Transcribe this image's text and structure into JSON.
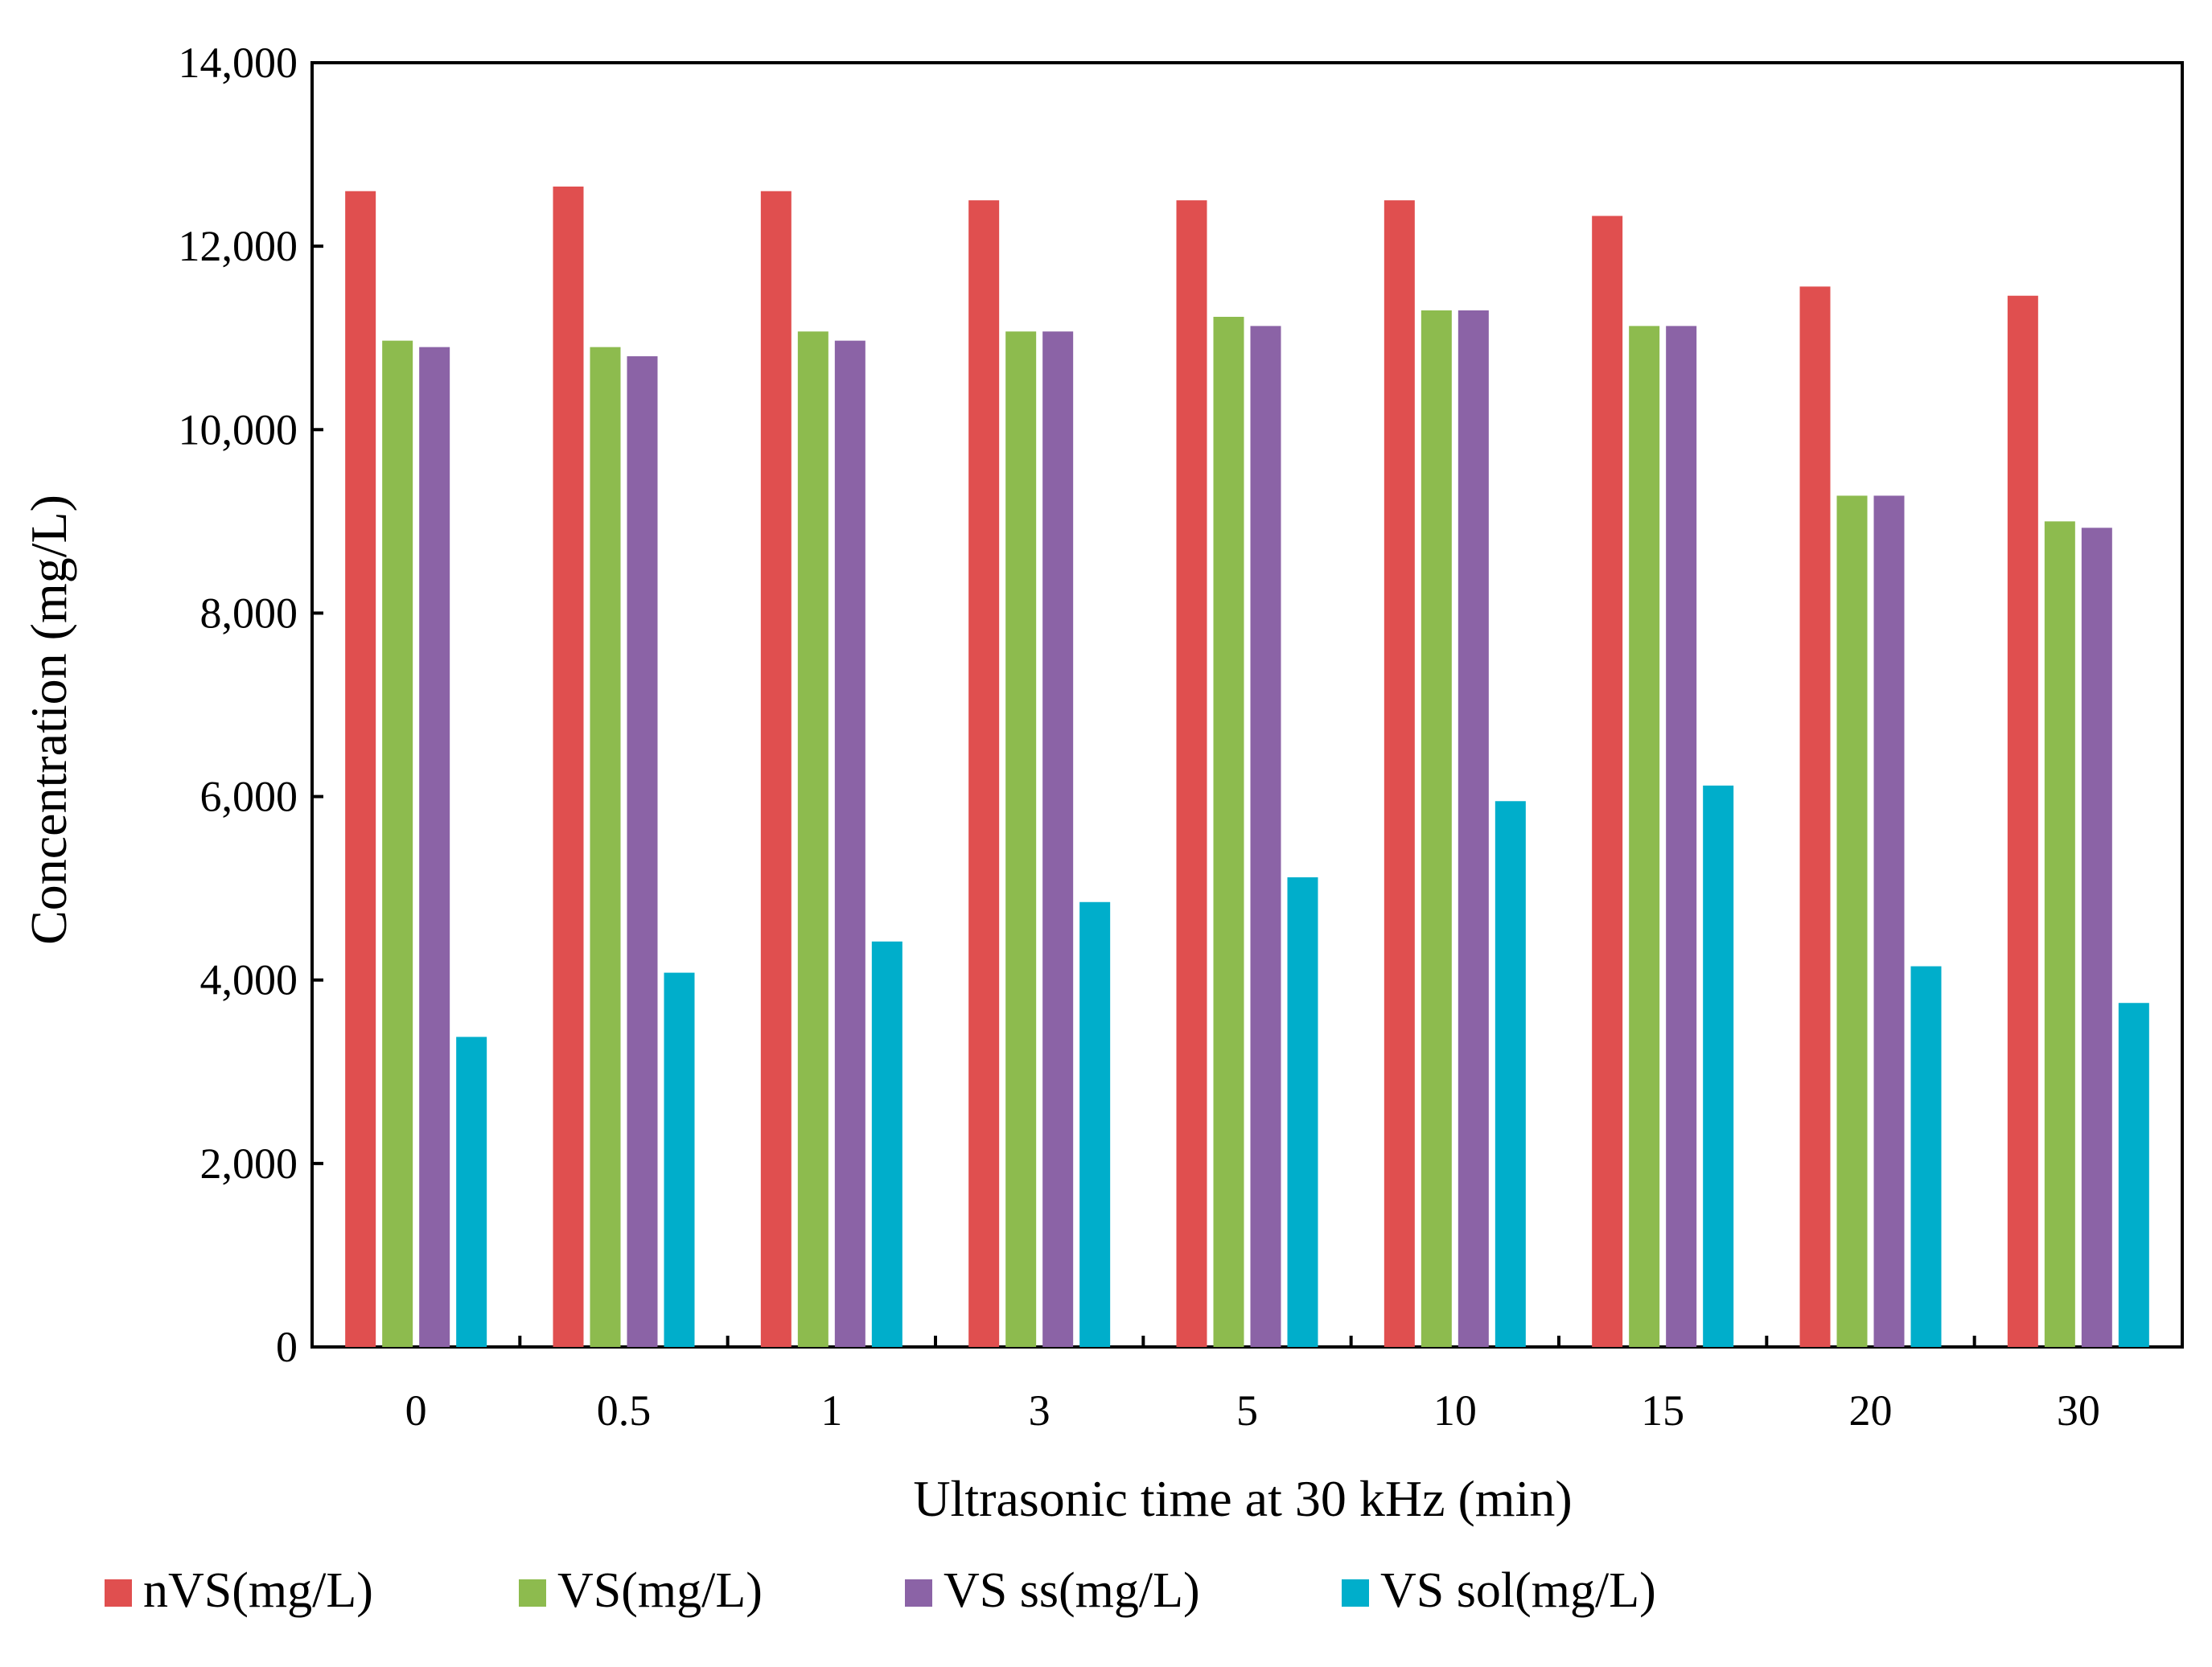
{
  "chart_data": {
    "type": "bar",
    "title": "",
    "xlabel": "Ultrasonic time at 30 kHz (min)",
    "ylabel": "Concentration (mg/L)",
    "ylim": [
      0,
      14000
    ],
    "ytick_values": [
      0,
      2000,
      4000,
      6000,
      8000,
      10000,
      12000,
      14000
    ],
    "ytick_labels": [
      "0",
      "2,000",
      "4,000",
      "6,000",
      "8,000",
      "10,000",
      "12,000",
      "14,000"
    ],
    "categories": [
      "0",
      "0.5",
      "1",
      "3",
      "5",
      "10",
      "15",
      "20",
      "30"
    ],
    "grid": false,
    "legend_position": "bottom",
    "series": [
      {
        "name": "nVS(mg/L)",
        "color": "#E04F4F",
        "values": [
          12600,
          12650,
          12600,
          12500,
          12500,
          12500,
          12330,
          11560,
          11460
        ]
      },
      {
        "name": "VS(mg/L)",
        "color": "#8DBB4E",
        "values": [
          10970,
          10900,
          11070,
          11070,
          11230,
          11300,
          11130,
          9280,
          9000
        ]
      },
      {
        "name": "VS ss(mg/L)",
        "color": "#8B63A6",
        "values": [
          10900,
          10800,
          10970,
          11070,
          11130,
          11300,
          11130,
          9280,
          8930
        ]
      },
      {
        "name": "VS sol(mg/L)",
        "color": "#00AECB",
        "values": [
          3380,
          4080,
          4420,
          4850,
          5120,
          5950,
          6120,
          4150,
          3750
        ]
      }
    ]
  }
}
